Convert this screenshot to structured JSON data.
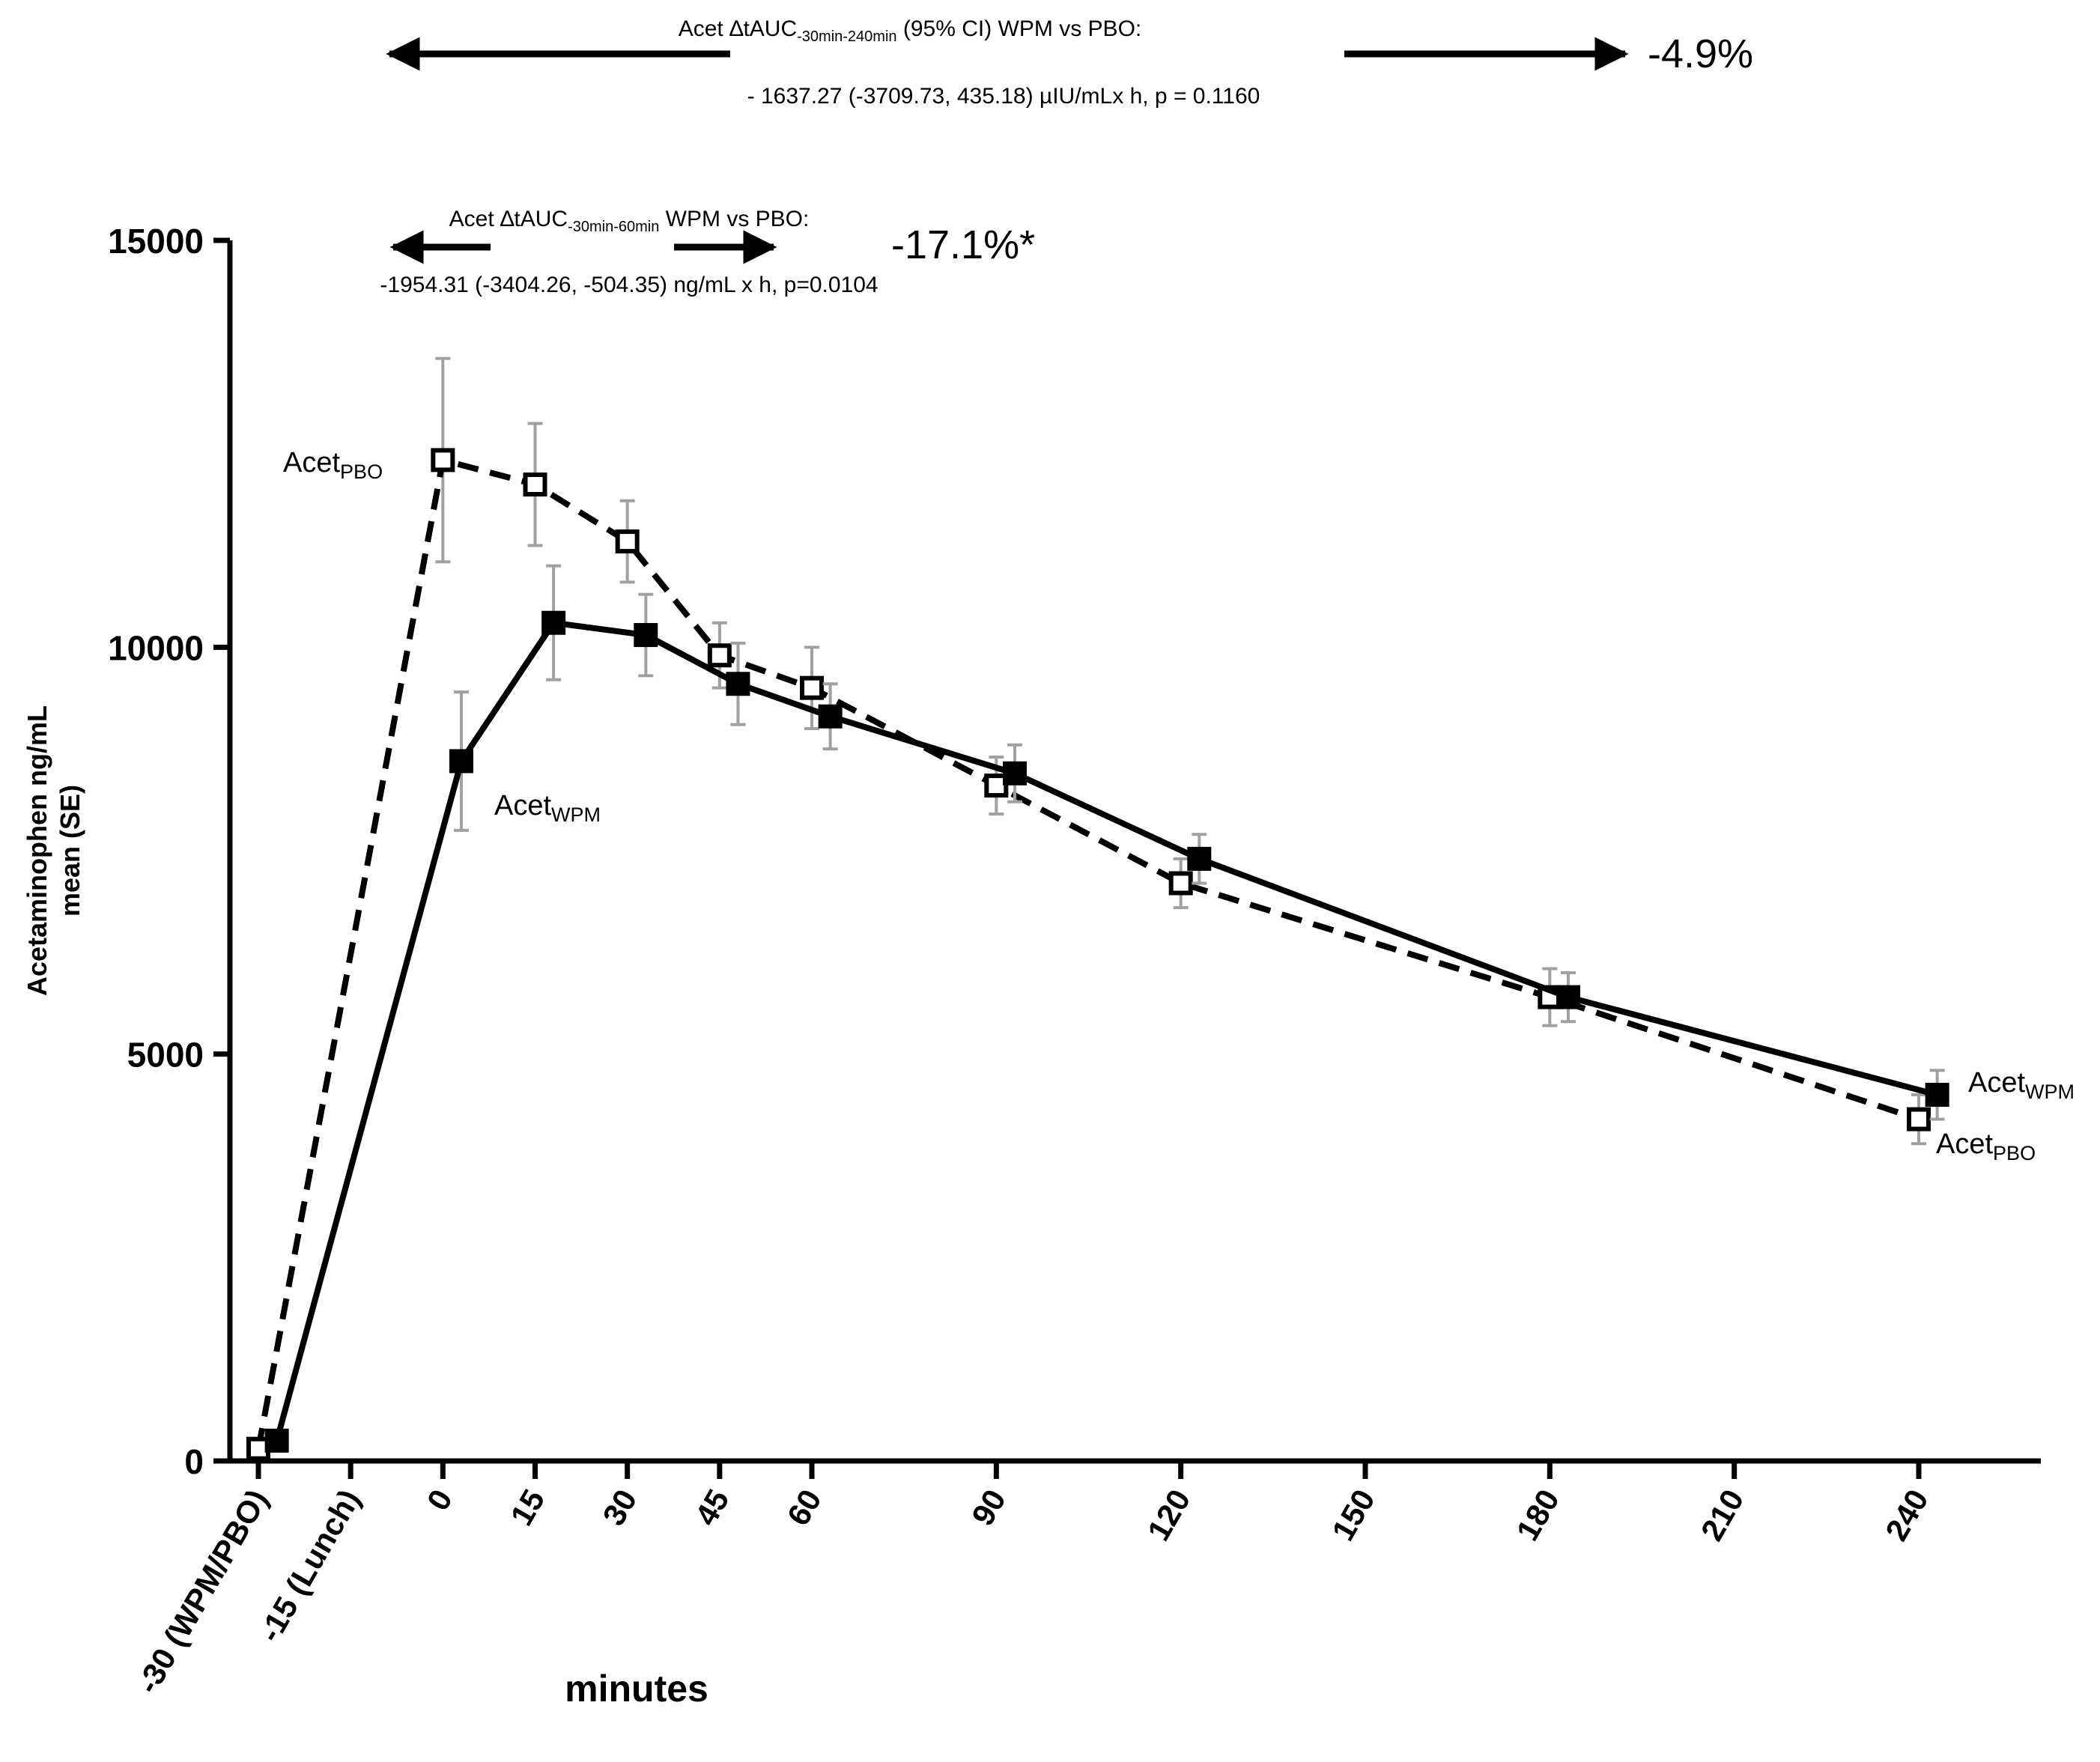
{
  "chart_data": {
    "type": "line",
    "ylabel": "Acetaminophen ng/mL",
    "ylabel2": "mean (SE)",
    "xlabel": "minutes",
    "ylim": [
      0,
      15000
    ],
    "yticks": [
      0,
      5000,
      10000,
      15000
    ],
    "xticks": [
      {
        "x": -30,
        "label": "-30 (WPM/PBO)"
      },
      {
        "x": -15,
        "label": "-15 (Lunch)"
      },
      {
        "x": 0,
        "label": "0"
      },
      {
        "x": 15,
        "label": "15"
      },
      {
        "x": 30,
        "label": "30"
      },
      {
        "x": 45,
        "label": "45"
      },
      {
        "x": 60,
        "label": "60"
      },
      {
        "x": 90,
        "label": "90"
      },
      {
        "x": 120,
        "label": "120"
      },
      {
        "x": 150,
        "label": "150"
      },
      {
        "x": 180,
        "label": "180"
      },
      {
        "x": 210,
        "label": "210"
      },
      {
        "x": 240,
        "label": "240"
      }
    ],
    "series": [
      {
        "name": "PBO",
        "style": "dashed",
        "marker": "open-square",
        "x": [
          -30,
          0,
          15,
          30,
          45,
          60,
          90,
          120,
          180,
          240
        ],
        "y": [
          150,
          12300,
          12000,
          11300,
          9900,
          9500,
          8300,
          7100,
          5700,
          4200
        ],
        "se": [
          0,
          1250,
          750,
          500,
          400,
          500,
          350,
          300,
          350,
          300
        ]
      },
      {
        "name": "WPM",
        "style": "solid",
        "marker": "filled-square",
        "x": [
          -27,
          3,
          18,
          33,
          48,
          63,
          93,
          123,
          183,
          243
        ],
        "y": [
          250,
          8600,
          10300,
          10150,
          9550,
          9150,
          8450,
          7400,
          5700,
          4500
        ],
        "se": [
          0,
          850,
          700,
          500,
          500,
          400,
          350,
          300,
          300,
          300
        ]
      }
    ],
    "labels": {
      "acet": "Acet",
      "pbo_sub": "PBO",
      "wpm_sub": "WPM"
    },
    "annotations": {
      "top": {
        "line1_a": "Acet ∆tAUC",
        "line1_sub": "-30min-240min",
        "line1_b": " (95% CI) WPM vs  PBO:",
        "line2": "- 1637.27 (-3709.73, 435.18)  µIU/mLx h, p = 0.1160",
        "pct": "-4.9%"
      },
      "inner": {
        "line1_a": "Acet ∆tAUC",
        "line1_sub": "-30min-60min",
        "line1_b": " WPM vs  PBO:",
        "line2": "-1954.31 (-3404.26, -504.35) ng/mL x h, p=0.0104",
        "pct": "-17.1%*"
      }
    }
  }
}
